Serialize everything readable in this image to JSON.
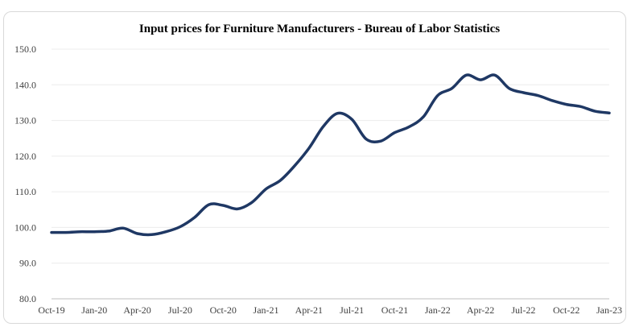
{
  "chart_data": {
    "type": "line",
    "title": "Input prices for Furniture Manufacturers - Bureau of Labor Statistics",
    "xlabel": "",
    "ylabel": "",
    "ylim": [
      80.0,
      150.0
    ],
    "y_ticks": [
      "80.0",
      "90.0",
      "100.0",
      "110.0",
      "120.0",
      "130.0",
      "140.0",
      "150.0"
    ],
    "x_tick_labels": [
      "Oct-19",
      "Jan-20",
      "Apr-20",
      "Jul-20",
      "Oct-20",
      "Jan-21",
      "Apr-21",
      "Jul-21",
      "Oct-21",
      "Jan-22",
      "Apr-22",
      "Jul-22",
      "Oct-22",
      "Jan-23"
    ],
    "grid": true,
    "legend": "none",
    "line_color": "#1f3864",
    "x": [
      "Oct-19",
      "Nov-19",
      "Dec-19",
      "Jan-20",
      "Feb-20",
      "Mar-20",
      "Apr-20",
      "May-20",
      "Jun-20",
      "Jul-20",
      "Aug-20",
      "Sep-20",
      "Oct-20",
      "Nov-20",
      "Dec-20",
      "Jan-21",
      "Feb-21",
      "Mar-21",
      "Apr-21",
      "May-21",
      "Jun-21",
      "Jul-21",
      "Aug-21",
      "Sep-21",
      "Oct-21",
      "Nov-21",
      "Dec-21",
      "Jan-22",
      "Feb-22",
      "Mar-22",
      "Apr-22",
      "May-22",
      "Jun-22",
      "Jul-22",
      "Aug-22",
      "Sep-22",
      "Oct-22",
      "Nov-22",
      "Dec-22",
      "Jan-23"
    ],
    "series": [
      {
        "values": [
          98.6,
          98.6,
          98.8,
          98.8,
          99.0,
          99.8,
          98.3,
          98.0,
          98.8,
          100.2,
          102.8,
          106.4,
          106.2,
          105.2,
          107.0,
          110.8,
          113.2,
          117.3,
          122.2,
          128.3,
          132.0,
          130.3,
          124.8,
          124.2,
          126.6,
          128.2,
          131.0,
          137.0,
          139.0,
          142.7,
          141.4,
          142.7,
          139.0,
          137.8,
          137.0,
          135.6,
          134.5,
          133.9,
          132.6,
          132.1
        ]
      }
    ]
  }
}
